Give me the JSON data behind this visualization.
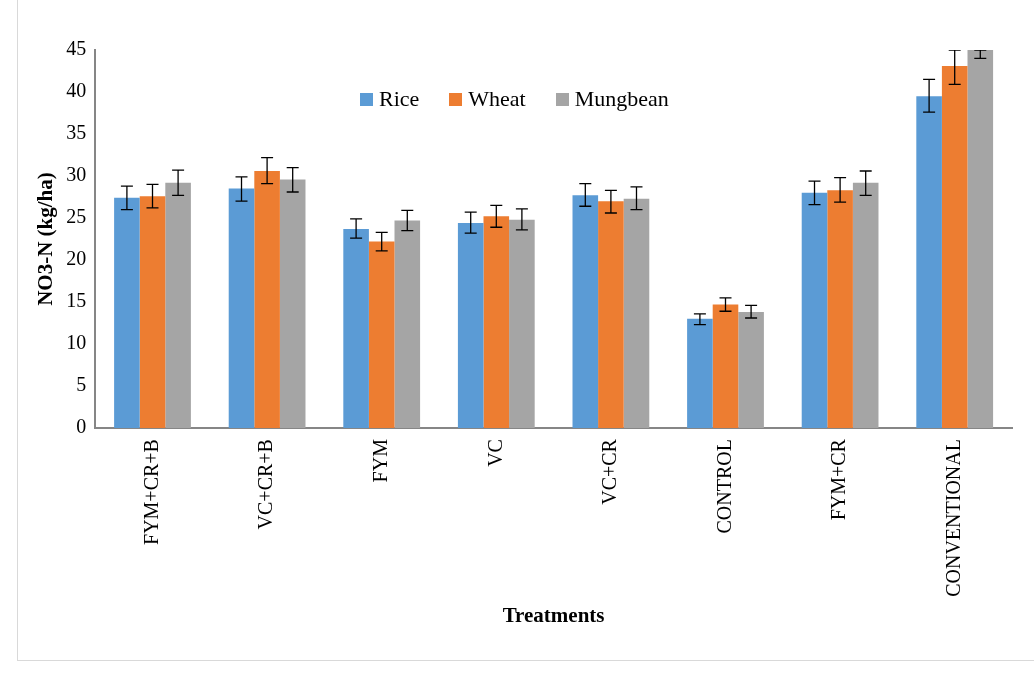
{
  "chart_data": {
    "type": "bar",
    "xlabel": "Treatments",
    "ylabel": "NO3-N (kg/ha)",
    "categories": [
      "FYM+CR+B",
      "VC+CR+B",
      "FYM",
      "VC",
      "VC+CR",
      "CONTROL",
      "FYM+CR",
      "CONVENTIONAL"
    ],
    "series": [
      {
        "name": "Rice",
        "color": "#5b9bd5",
        "values": [
          27.4,
          28.5,
          23.7,
          24.4,
          27.7,
          13.0,
          28.0,
          39.5
        ],
        "errors": [
          [
            26.0,
            28.8
          ],
          [
            27.0,
            29.9
          ],
          [
            22.6,
            24.9
          ],
          [
            23.2,
            25.7
          ],
          [
            26.4,
            29.1
          ],
          [
            12.3,
            13.6
          ],
          [
            26.6,
            29.4
          ],
          [
            37.6,
            41.5
          ]
        ]
      },
      {
        "name": "Wheat",
        "color": "#ed7d31",
        "values": [
          27.6,
          30.6,
          22.2,
          25.2,
          27.0,
          14.7,
          28.3,
          43.1
        ],
        "errors": [
          [
            26.2,
            29.0
          ],
          [
            29.1,
            32.2
          ],
          [
            21.1,
            23.3
          ],
          [
            23.9,
            26.5
          ],
          [
            25.6,
            28.3
          ],
          [
            13.9,
            15.5
          ],
          [
            26.9,
            29.8
          ],
          [
            40.9,
            45
          ]
        ]
      },
      {
        "name": "Mungbean",
        "color": "#a5a5a5",
        "values": [
          29.2,
          29.6,
          24.7,
          24.8,
          27.3,
          13.8,
          29.2,
          45
        ],
        "errors": [
          [
            27.7,
            30.7
          ],
          [
            28.1,
            31.0
          ],
          [
            23.5,
            25.9
          ],
          [
            23.6,
            26.1
          ],
          [
            26.0,
            28.7
          ],
          [
            13.1,
            14.6
          ],
          [
            27.7,
            30.6
          ],
          [
            44,
            45
          ]
        ]
      }
    ],
    "ylim": [
      0,
      45
    ],
    "yticks": [
      0,
      5,
      10,
      15,
      20,
      25,
      30,
      35,
      40,
      45
    ],
    "grid": false,
    "legend": "top"
  }
}
